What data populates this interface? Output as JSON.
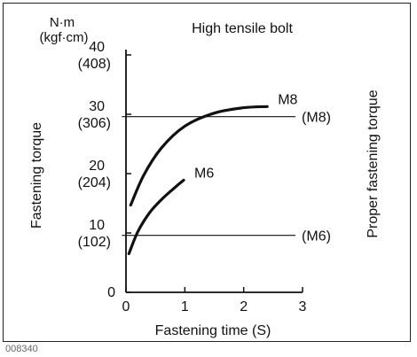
{
  "figure_code": "008340",
  "chart_data": {
    "type": "line",
    "title": "High tensile bolt",
    "xlabel": "Fastening time (S)",
    "ylabel": "Fastening torque",
    "ylabel_right": "Proper fastening torque",
    "y_units": [
      "N·m",
      "(kgf·cm)"
    ],
    "xlim": [
      0,
      3
    ],
    "ylim": [
      0,
      40
    ],
    "x_ticks": [
      "0",
      "1",
      "2",
      "3"
    ],
    "y_ticks": [
      {
        "value": 0,
        "label": "0",
        "sub": ""
      },
      {
        "value": 10,
        "label": "10",
        "sub": "(102)"
      },
      {
        "value": 20,
        "label": "20",
        "sub": "(204)"
      },
      {
        "value": 30,
        "label": "30",
        "sub": "(306)"
      },
      {
        "value": 40,
        "label": "40",
        "sub": "(408)"
      }
    ],
    "series": [
      {
        "name": "M8",
        "x": [
          0.08,
          0.3,
          0.6,
          1.0,
          1.5,
          2.0,
          2.4
        ],
        "y": [
          14.7,
          19.7,
          24.3,
          28.0,
          30.2,
          31.1,
          31.3
        ]
      },
      {
        "name": "M6",
        "x": [
          0.05,
          0.2,
          0.4,
          0.6,
          0.8,
          0.98
        ],
        "y": [
          6.5,
          10.2,
          13.4,
          15.6,
          17.4,
          18.9
        ]
      }
    ],
    "reference_lines": [
      {
        "label": "(M8)",
        "y": 29.6,
        "x_range": [
          -0.07,
          2.88
        ]
      },
      {
        "label": "(M6)",
        "y": 9.6,
        "x_range": [
          -0.07,
          2.88
        ]
      }
    ],
    "grid": false
  }
}
